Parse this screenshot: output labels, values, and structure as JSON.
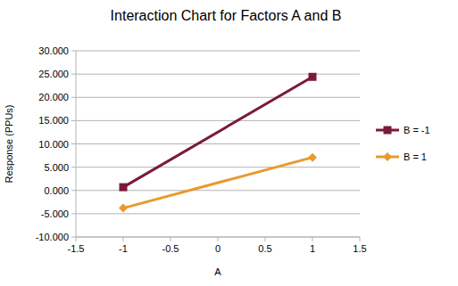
{
  "chart_data": {
    "type": "line",
    "title": "Interaction Chart for Factors A and B",
    "x_label": "A",
    "y_label": "Response (PPUs)",
    "x": [
      -1,
      1
    ],
    "series": [
      {
        "name": "B = -1",
        "color": "#7b1a36",
        "marker": "square",
        "values": [
          0.7,
          24.4
        ]
      },
      {
        "name": "B = 1",
        "color": "#e89a2c",
        "marker": "diamond",
        "values": [
          -3.8,
          7.1
        ]
      }
    ],
    "xlim": [
      -1.5,
      1.5
    ],
    "xticks": [
      -1.5,
      -1,
      -0.5,
      0,
      0.5,
      1,
      1.5
    ],
    "ylim": [
      -10,
      30
    ],
    "yticks": [
      {
        "value": -10,
        "label": "-10.000"
      },
      {
        "value": -5,
        "label": "-5.000"
      },
      {
        "value": 0,
        "label": "0.000"
      },
      {
        "value": 5,
        "label": "5.000"
      },
      {
        "value": 10,
        "label": "10.000"
      },
      {
        "value": 15,
        "label": "15.000"
      },
      {
        "value": 20,
        "label": "20.000"
      },
      {
        "value": 25,
        "label": "25.000"
      },
      {
        "value": 30,
        "label": "30.000"
      }
    ],
    "grid": true,
    "legend": "right"
  }
}
